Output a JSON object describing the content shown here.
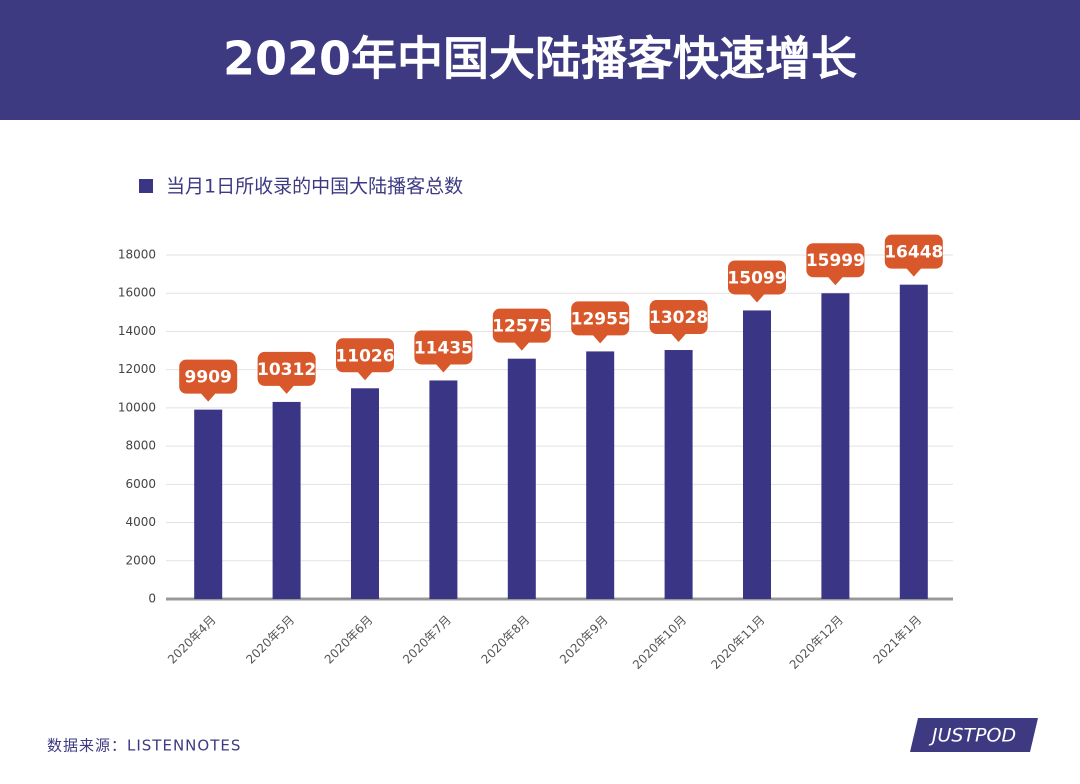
{
  "chart_data": {
    "type": "bar",
    "title": "2020年中国大陆播客快速增长",
    "categories": [
      "2020年4月",
      "2020年5月",
      "2020年6月",
      "2020年7月",
      "2020年8月",
      "2020年9月",
      "2020年10月",
      "2020年11月",
      "2020年12月",
      "2021年1月"
    ],
    "series": [
      {
        "name": "当月1日所收录的中国大陆播客总数",
        "color": "#3b3586",
        "values": [
          9909,
          10312,
          11026,
          11435,
          12575,
          12955,
          13028,
          15099,
          15999,
          16448
        ]
      }
    ],
    "label_color": "#d9582b",
    "ylim": [
      0,
      18000
    ],
    "yticks": [
      0,
      2000,
      4000,
      6000,
      8000,
      10000,
      12000,
      14000,
      16000,
      18000
    ],
    "grid": true,
    "legend": "top-left",
    "source": "数据来源：LISTENNOTES",
    "logo": "JUSTPOD"
  }
}
